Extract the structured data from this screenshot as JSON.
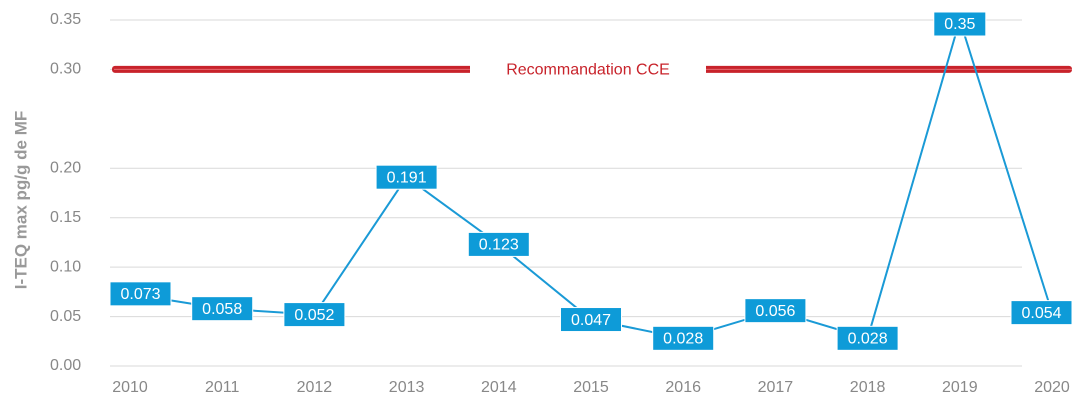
{
  "chart_data": {
    "type": "line",
    "y_label": "I-TEQ max pg/g de MF",
    "categories": [
      "2010",
      "2011",
      "2012",
      "2013",
      "2014",
      "2015",
      "2016",
      "2017",
      "2018",
      "2019",
      "2020"
    ],
    "series": [
      {
        "name": "I-TEQ max",
        "color": "#1a9ad6",
        "values": [
          0.073,
          0.058,
          0.052,
          0.191,
          0.123,
          0.047,
          0.028,
          0.056,
          0.028,
          0.35,
          0.054
        ]
      }
    ],
    "ylim": [
      0,
      0.35
    ],
    "yticks": [
      {
        "value": 0,
        "label": "0.00"
      },
      {
        "value": 0.05,
        "label": "0.05"
      },
      {
        "value": 0.1,
        "label": "0.10"
      },
      {
        "value": 0.15,
        "label": "0.15"
      },
      {
        "value": 0.2,
        "label": "0.20"
      },
      {
        "value": 0.3,
        "label": "0.30"
      },
      {
        "value": 0.35,
        "label": "0.35"
      }
    ],
    "grid": true,
    "reference_line": {
      "value": 0.3,
      "label": "Recommandation CCE",
      "color": "#c8232b"
    }
  }
}
